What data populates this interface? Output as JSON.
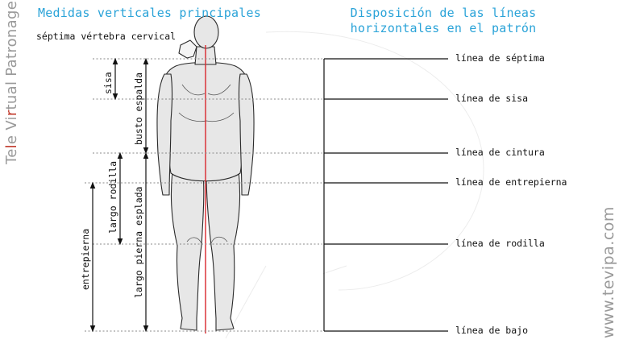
{
  "left_title": "Medidas verticales principales",
  "right_title": "Disposición de las líneas horizontales en el patrón",
  "subtitle": "séptima vértebra cervical",
  "brand_left": {
    "part1": "Te",
    "mark1": "l",
    "part2": "e Vi",
    "mark2": "r",
    "part3": "tual Patronage"
  },
  "brand_right": "www.tevipa.com",
  "measures": {
    "sisa": "sisa",
    "busto_espalda": "busto espalda",
    "largo_rodilla": "largo rodilla",
    "largo_pierna_espalda": "largo pierna esplada",
    "entrepierna": "entrepierna"
  },
  "lines": {
    "septima": "línea de séptima",
    "sisa": "línea de sisa",
    "cintura": "línea de cintura",
    "entrepierna": "línea de entrepierna",
    "rodilla": "línea de rodilla",
    "bajo": "línea de bajo"
  },
  "colors": {
    "title": "#2aa3d8",
    "axis": "#d9262c",
    "brand": "#9a9a9a"
  }
}
